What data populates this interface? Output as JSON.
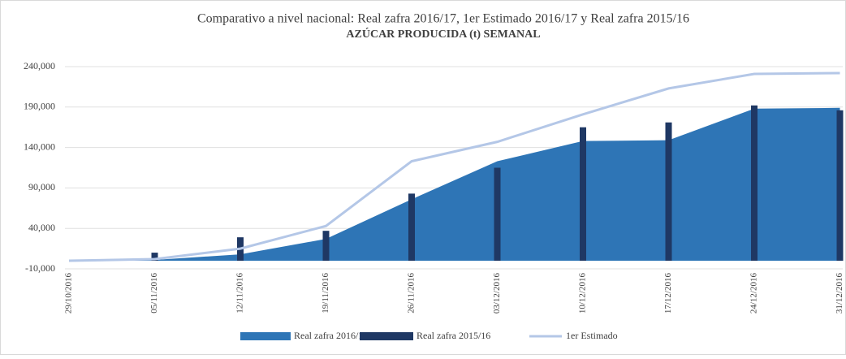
{
  "chart_data": {
    "type": "combo",
    "title": "Comparativo a nivel nacional: Real zafra 2016/17, 1er Estimado 2016/17 y Real zafra 2015/16",
    "subtitle": "AZÚCAR PRODUCIDA (t) SEMANAL",
    "categories": [
      "29/10/2016",
      "05/11/2016",
      "12/11/2016",
      "19/11/2016",
      "26/11/2016",
      "03/12/2016",
      "10/12/2016",
      "17/12/2016",
      "24/12/2016",
      "31/12/2016"
    ],
    "series": [
      {
        "name": "Real zafra 2016/17",
        "type": "area",
        "color": "#2e75b6",
        "values": [
          0,
          1000,
          8000,
          27000,
          76000,
          123000,
          148000,
          149000,
          188000,
          189000
        ]
      },
      {
        "name": "Real zafra 2015/16",
        "type": "bar",
        "color": "#1f3864",
        "values": [
          null,
          10000,
          29000,
          37000,
          83000,
          115000,
          165000,
          171000,
          192000,
          186000
        ]
      },
      {
        "name": "1er Estimado",
        "type": "line",
        "color": "#b4c7e7",
        "values": [
          0,
          2000,
          15000,
          43000,
          123000,
          147000,
          181000,
          213000,
          231000,
          232000
        ]
      }
    ],
    "ylim": [
      -10000,
      240000
    ],
    "yticks": [
      {
        "value": -10000,
        "label": "-10,000"
      },
      {
        "value": 40000,
        "label": "40,000"
      },
      {
        "value": 90000,
        "label": "90,000"
      },
      {
        "value": 140000,
        "label": "140,000"
      },
      {
        "value": 190000,
        "label": "190,000"
      },
      {
        "value": 240000,
        "label": "240,000"
      }
    ],
    "grid": true,
    "legend": "bottom"
  }
}
